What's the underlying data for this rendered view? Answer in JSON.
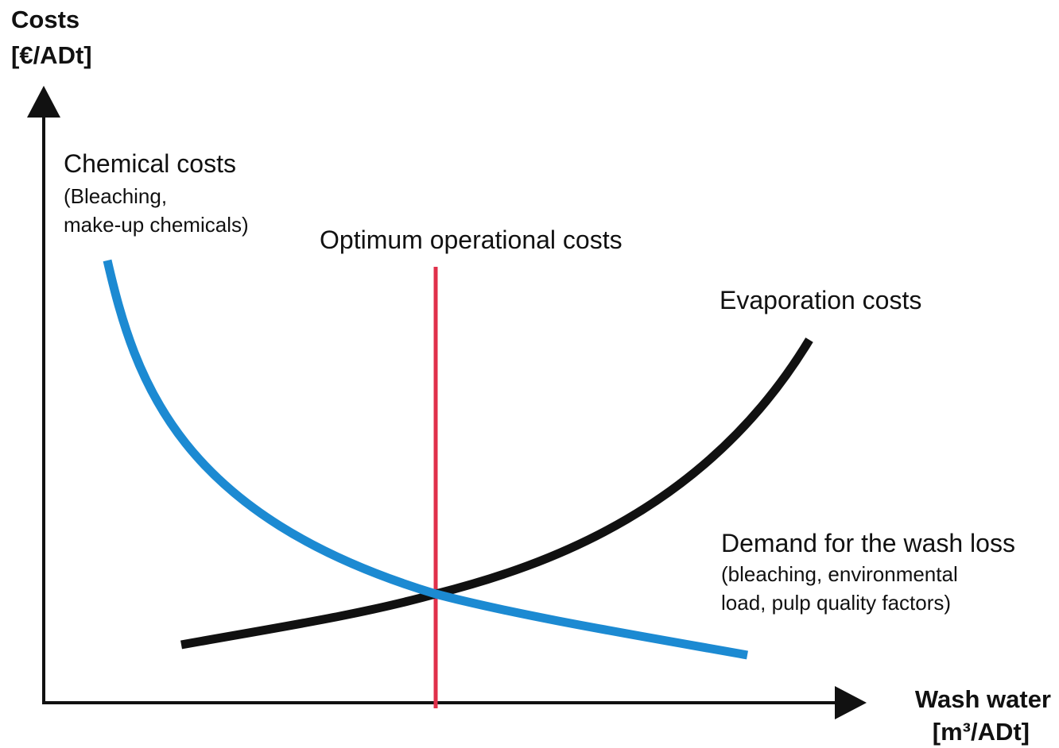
{
  "axes": {
    "y_label": [
      "Costs",
      "[€/ADt]"
    ],
    "x_label": [
      "Wash water",
      "[m³/ADt]"
    ]
  },
  "curves": {
    "chemical": {
      "title": "Chemical costs",
      "notes": [
        "(Bleaching,",
        "make-up chemicals)"
      ]
    },
    "optimum": {
      "title": "Optimum operational costs"
    },
    "evaporation": {
      "title": "Evaporation costs"
    },
    "wash_loss": {
      "title": "Demand for the wash loss",
      "notes": [
        "(bleaching, environmental",
        "load, pulp quality factors)"
      ]
    }
  }
}
